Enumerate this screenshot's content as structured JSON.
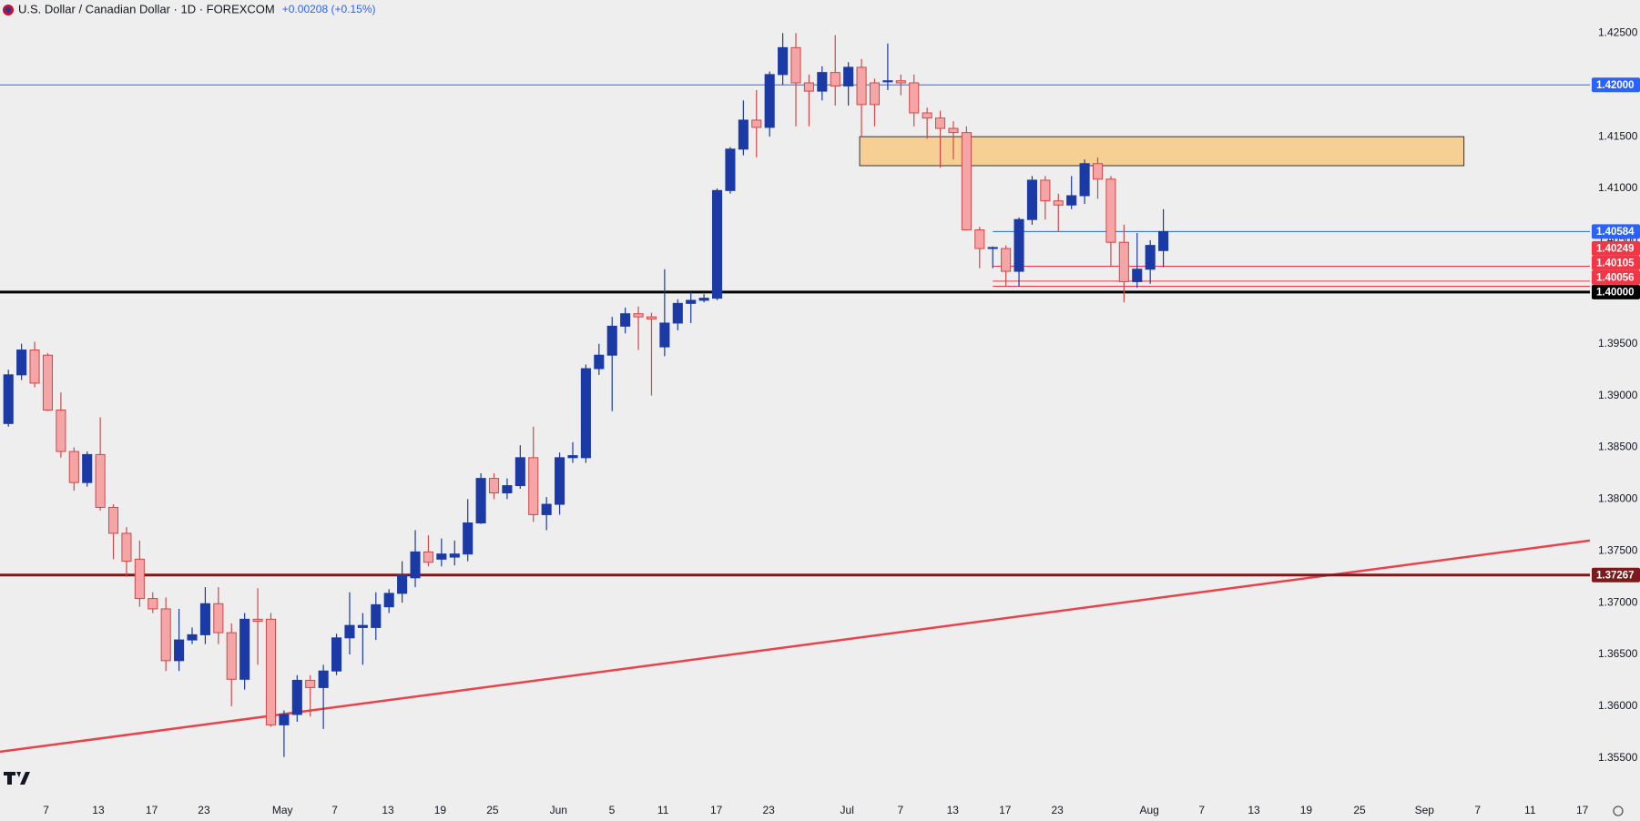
{
  "chart_data": {
    "type": "candlestick",
    "title": "U.S. Dollar / Canadian Dollar · 1D · FOREXCOM",
    "subtitle": "+0.00208 (+0.15%)",
    "up_color": "#1b3aa6",
    "down_color": "#f5a5a5",
    "down_border": "#d04848",
    "open": [
      1.3873,
      1.392,
      1.3944,
      1.3939,
      1.3886,
      1.3846,
      1.3816,
      1.3843,
      1.3792,
      1.3767,
      1.3742,
      1.3704,
      1.3694,
      1.3644,
      1.3664,
      1.3669,
      1.3699,
      1.3671,
      1.3626,
      1.3684,
      1.3684,
      1.3582,
      1.3592,
      1.3625,
      1.3618,
      1.3634,
      1.3666,
      1.3676,
      1.3676,
      1.3696,
      1.3709,
      1.3724,
      1.3749,
      1.3742,
      1.3744,
      1.3747,
      1.3777,
      1.382,
      1.3806,
      1.3813,
      1.384,
      1.3785,
      1.3795,
      1.384,
      1.384,
      1.3926,
      1.3939,
      1.3967,
      1.3979,
      1.3976,
      1.3947,
      1.397,
      1.3989,
      1.3992,
      1.3994,
      1.4098,
      1.4138,
      1.4166,
      1.4159,
      1.421,
      1.4236,
      1.4202,
      1.4194,
      1.4212,
      1.4199,
      1.4217,
      1.4202,
      1.4203,
      1.4204,
      1.4202,
      1.4173,
      1.4168,
      1.4158,
      1.4154,
      1.406,
      1.4042,
      1.4042,
      1.402,
      1.407,
      1.4108,
      1.4088,
      1.4084,
      1.4093,
      1.4124,
      1.4109,
      1.4048,
      1.401,
      1.4022,
      1.404
    ],
    "high": [
      1.3925,
      1.395,
      1.3952,
      1.3941,
      1.3903,
      1.385,
      1.3846,
      1.3879,
      1.3795,
      1.3773,
      1.376,
      1.371,
      1.3705,
      1.3694,
      1.3676,
      1.3715,
      1.3715,
      1.368,
      1.369,
      1.3714,
      1.369,
      1.3596,
      1.363,
      1.363,
      1.364,
      1.367,
      1.371,
      1.369,
      1.371,
      1.3713,
      1.374,
      1.377,
      1.3765,
      1.3762,
      1.376,
      1.38,
      1.3825,
      1.3825,
      1.382,
      1.3852,
      1.387,
      1.3802,
      1.3845,
      1.3855,
      1.393,
      1.395,
      1.3976,
      1.3985,
      1.3986,
      1.398,
      1.4022,
      1.3993,
      1.4,
      1.3998,
      1.41,
      1.414,
      1.4185,
      1.4195,
      1.4213,
      1.425,
      1.425,
      1.421,
      1.4218,
      1.4248,
      1.4222,
      1.4225,
      1.4206,
      1.424,
      1.421,
      1.421,
      1.4178,
      1.4175,
      1.4165,
      1.416,
      1.4063,
      1.4044,
      1.4045,
      1.4072,
      1.4112,
      1.4112,
      1.4095,
      1.4112,
      1.4128,
      1.413,
      1.4112,
      1.4065,
      1.4057,
      1.405,
      1.408
    ],
    "low": [
      1.387,
      1.3915,
      1.3908,
      1.3885,
      1.384,
      1.3808,
      1.3812,
      1.3789,
      1.3742,
      1.3725,
      1.3696,
      1.369,
      1.3634,
      1.3634,
      1.366,
      1.366,
      1.366,
      1.36,
      1.3616,
      1.364,
      1.358,
      1.3551,
      1.3585,
      1.359,
      1.3578,
      1.363,
      1.365,
      1.364,
      1.3664,
      1.369,
      1.37,
      1.3715,
      1.3735,
      1.3735,
      1.3736,
      1.374,
      1.3776,
      1.38,
      1.38,
      1.381,
      1.3778,
      1.377,
      1.3785,
      1.3835,
      1.3835,
      1.392,
      1.3885,
      1.396,
      1.3944,
      1.39,
      1.3938,
      1.3963,
      1.397,
      1.399,
      1.3992,
      1.4095,
      1.4132,
      1.413,
      1.415,
      1.42,
      1.416,
      1.416,
      1.4185,
      1.418,
      1.418,
      1.415,
      1.416,
      1.4195,
      1.419,
      1.416,
      1.4148,
      1.412,
      1.4128,
      1.406,
      1.4023,
      1.4023,
      1.4005,
      1.4005,
      1.4065,
      1.407,
      1.4058,
      1.408,
      1.4085,
      1.409,
      1.4025,
      1.399,
      1.4004,
      1.4008,
      1.4024
    ],
    "close": [
      1.392,
      1.3944,
      1.3912,
      1.3886,
      1.3846,
      1.3816,
      1.3843,
      1.3792,
      1.3767,
      1.374,
      1.3704,
      1.3694,
      1.3644,
      1.3664,
      1.3669,
      1.3699,
      1.3671,
      1.3626,
      1.3684,
      1.3682,
      1.3582,
      1.3592,
      1.3625,
      1.3618,
      1.3634,
      1.3666,
      1.3678,
      1.3678,
      1.3698,
      1.3709,
      1.3727,
      1.3749,
      1.3739,
      1.3747,
      1.3747,
      1.3777,
      1.382,
      1.3806,
      1.3813,
      1.384,
      1.3785,
      1.3795,
      1.384,
      1.3842,
      1.3926,
      1.3939,
      1.3967,
      1.3979,
      1.3976,
      1.3974,
      1.397,
      1.3989,
      1.3992,
      1.3994,
      1.4098,
      1.4138,
      1.4166,
      1.4159,
      1.421,
      1.4236,
      1.4202,
      1.4194,
      1.4212,
      1.4199,
      1.4217,
      1.4181,
      1.4181,
      1.4204,
      1.4202,
      1.4173,
      1.4168,
      1.4158,
      1.4154,
      1.406,
      1.4042,
      1.4043,
      1.402,
      1.407,
      1.4108,
      1.4088,
      1.4084,
      1.4093,
      1.4124,
      1.4109,
      1.4048,
      1.401,
      1.4022,
      1.4045,
      1.40584
    ],
    "xlim": [
      -0.64,
      120.5
    ],
    "xticks": [
      {
        "value": 2.87,
        "label": "7"
      },
      {
        "value": 6.85,
        "label": "13"
      },
      {
        "value": 10.92,
        "label": "17"
      },
      {
        "value": 14.9,
        "label": "23"
      },
      {
        "value": 20.88,
        "label": "May"
      },
      {
        "value": 24.86,
        "label": "7"
      },
      {
        "value": 28.92,
        "label": "13"
      },
      {
        "value": 32.9,
        "label": "19"
      },
      {
        "value": 36.89,
        "label": "25"
      },
      {
        "value": 41.91,
        "label": "Jun"
      },
      {
        "value": 45.98,
        "label": "5"
      },
      {
        "value": 49.88,
        "label": "11"
      },
      {
        "value": 53.94,
        "label": "17"
      },
      {
        "value": 57.93,
        "label": "23"
      },
      {
        "value": 63.9,
        "label": "Jul"
      },
      {
        "value": 67.97,
        "label": "7"
      },
      {
        "value": 71.95,
        "label": "13"
      },
      {
        "value": 75.94,
        "label": "17"
      },
      {
        "value": 79.92,
        "label": "23"
      },
      {
        "value": 86.93,
        "label": "Aug"
      },
      {
        "value": 90.92,
        "label": "7"
      },
      {
        "value": 94.9,
        "label": "13"
      },
      {
        "value": 98.88,
        "label": "19"
      },
      {
        "value": 102.95,
        "label": "25"
      },
      {
        "value": 107.89,
        "label": "Sep"
      },
      {
        "value": 111.95,
        "label": "7"
      },
      {
        "value": 115.94,
        "label": "11"
      },
      {
        "value": 119.92,
        "label": "17"
      }
    ],
    "ylim": [
      1.3512,
      1.4282
    ],
    "yticks": [
      {
        "value": 1.355,
        "label": "1.35500"
      },
      {
        "value": 1.36,
        "label": "1.36000"
      },
      {
        "value": 1.365,
        "label": "1.36500"
      },
      {
        "value": 1.37,
        "label": "1.37000"
      },
      {
        "value": 1.375,
        "label": "1.37500"
      },
      {
        "value": 1.38,
        "label": "1.38000"
      },
      {
        "value": 1.385,
        "label": "1.38500"
      },
      {
        "value": 1.39,
        "label": "1.39000"
      },
      {
        "value": 1.395,
        "label": "1.39500"
      },
      {
        "value": 1.4,
        "label": "1.40000"
      },
      {
        "value": 1.405,
        "label": "1.40500"
      },
      {
        "value": 1.41,
        "label": "1.41000"
      },
      {
        "value": 1.415,
        "label": "1.41500"
      },
      {
        "value": 1.42,
        "label": "1.42000"
      },
      {
        "value": 1.425,
        "label": "1.42500"
      }
    ],
    "grid": false,
    "levels": [
      {
        "value": 1.42,
        "label": "1.42000",
        "color": "#2962ff",
        "weight": "light"
      },
      {
        "value": 1.40584,
        "label": "1.40584",
        "color": "#2962ff",
        "weight": "light",
        "x_from": 75
      },
      {
        "value": 1.40249,
        "label": "1.40249",
        "color": "#f23645",
        "weight": "light",
        "x_from": 75
      },
      {
        "value": 1.40105,
        "label": "1.40105",
        "color": "#f23645",
        "weight": "light",
        "x_from": 75
      },
      {
        "value": 1.40056,
        "label": "1.40056",
        "color": "#f23645",
        "weight": "light",
        "x_from": 75
      },
      {
        "value": 1.4,
        "label": "1.40000",
        "color": "#000000",
        "weight": "heavy"
      },
      {
        "value": 1.37267,
        "label": "1.37267",
        "color": "#7b1a1a",
        "weight": "heavy"
      }
    ],
    "zone": {
      "x": [
        64.86,
        110.9
      ],
      "y": [
        1.4122,
        1.415
      ],
      "color": "#f5cf94"
    },
    "trendline": {
      "x": [
        -0.64,
        120.5
      ],
      "y": [
        1.3556,
        1.376
      ],
      "color": "#e8434b"
    }
  }
}
